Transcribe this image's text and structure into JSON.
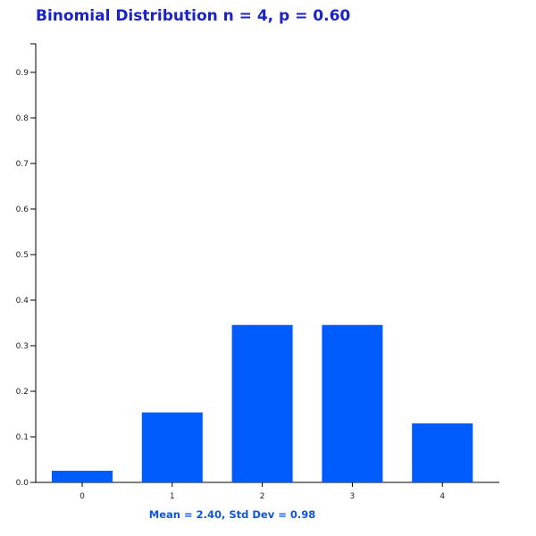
{
  "chart_data": {
    "type": "bar",
    "title": "Binomial Distribution n = 4, p = 0.60",
    "categories": [
      "0",
      "1",
      "2",
      "3",
      "4"
    ],
    "values": [
      0.0256,
      0.1536,
      0.3456,
      0.3456,
      0.1296
    ],
    "ylim": [
      0,
      1.0
    ],
    "yticks": [
      "0.0",
      "0.1",
      "0.2",
      "0.3",
      "0.4",
      "0.5",
      "0.6",
      "0.7",
      "0.8",
      "0.9"
    ],
    "xlabel": "Mean = 2.40, Std Dev = 0.98",
    "ylabel": "",
    "grid": false,
    "bar_color": "#005cff",
    "axis_color": "#000000",
    "title_color": "#1a22c8",
    "stats_color": "#1155dd"
  }
}
